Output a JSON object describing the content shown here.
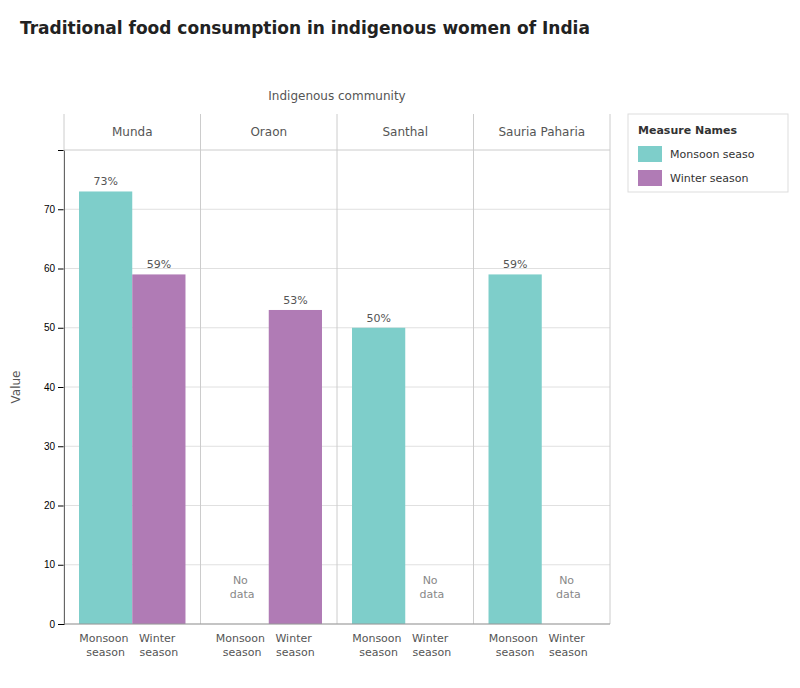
{
  "chart_data": {
    "type": "bar",
    "title": "Traditional food consumption in indigenous women of India",
    "xlabel": "Indigenous community",
    "ylabel": "Value",
    "categories": [
      "Munda",
      "Oraon",
      "Santhal",
      "Sauria Paharia"
    ],
    "subcategories": [
      "Monsoon season",
      "Winter season"
    ],
    "legend_title": "Measure Names",
    "series": [
      {
        "name": "Monsoon seaso",
        "color": "#7ECECA",
        "values": [
          73,
          null,
          50,
          59
        ],
        "value_labels": [
          "73%",
          "No data",
          "50%",
          "59%"
        ]
      },
      {
        "name": "Winter season",
        "color": "#B07BB5",
        "values": [
          59,
          53,
          null,
          null
        ],
        "value_labels": [
          "59%",
          "53%",
          "No data",
          "No data"
        ]
      }
    ],
    "ylim": [
      0,
      80
    ],
    "yticks": [
      0,
      10,
      20,
      30,
      40,
      50,
      60,
      70
    ],
    "grid": true,
    "legend": "right",
    "data_labels": true
  }
}
